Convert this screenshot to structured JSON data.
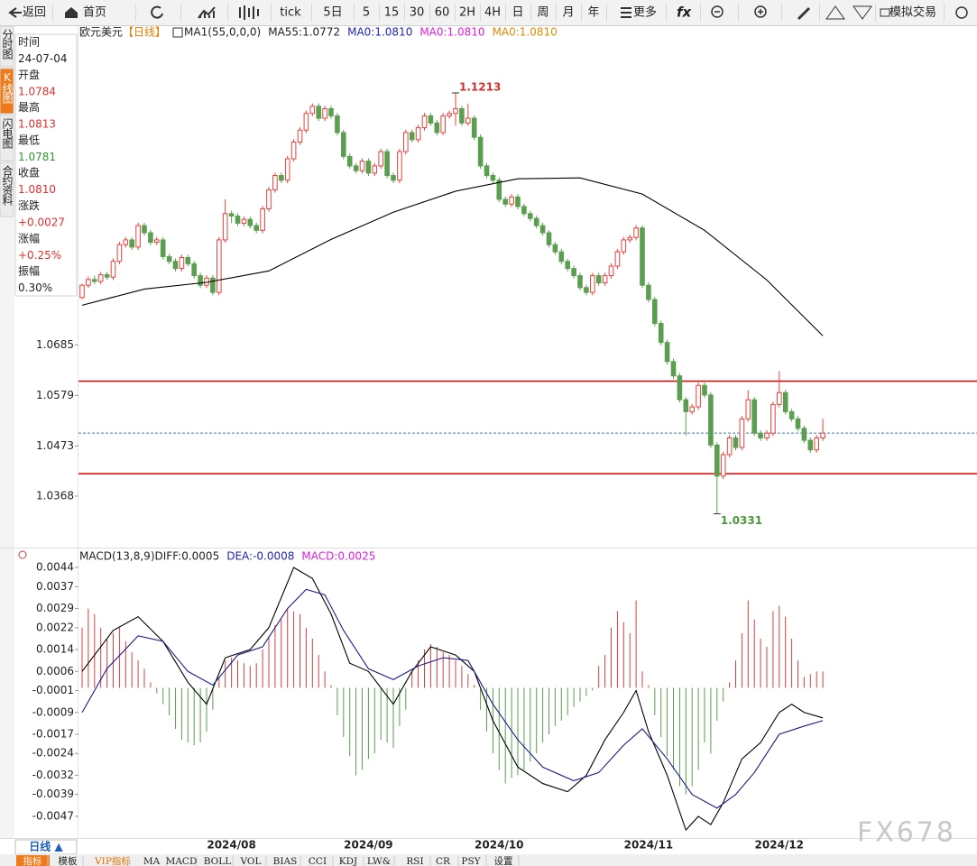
{
  "toolbar": {
    "buttons": [
      "返回",
      "首页",
      "tick",
      "5日",
      "5",
      "15",
      "30",
      "60",
      "2H",
      "4H",
      "日",
      "周",
      "月",
      "年",
      "更多",
      "模拟交易"
    ]
  },
  "side_tabs": [
    "分时图",
    "K线图",
    "闪电图",
    "合约资料"
  ],
  "info_panel": [
    {
      "label": "时间",
      "value": "24-07-04",
      "color": "#222222"
    },
    {
      "label": "开盘",
      "value": "1.0784",
      "color": "#e03030"
    },
    {
      "label": "最高",
      "value": "1.0813",
      "color": "#e03030"
    },
    {
      "label": "最低",
      "value": "1.0781",
      "color": "#2e9a2e"
    },
    {
      "label": "收盘",
      "value": "1.0810",
      "color": "#e03030"
    },
    {
      "label": "涨跌",
      "value": "+0.0027",
      "color": "#e03030"
    },
    {
      "label": "涨幅",
      "value": "+0.25%",
      "color": "#e03030"
    },
    {
      "label": "振幅",
      "value": "0.30%",
      "color": "#222222"
    }
  ],
  "chart_data": [
    {
      "type": "candlestick",
      "legend": [
        {
          "text": "欧元美元",
          "color": "#222222"
        },
        {
          "text": "【日线】",
          "color": "#e87b00"
        },
        {
          "text": "MA1(55,0,0,0)",
          "color": "#222222"
        },
        {
          "text": "MA55:1.0772",
          "color": "#222222"
        },
        {
          "text": "MA0:1.0810",
          "color": "#2424b8"
        },
        {
          "text": "MA0:1.0810",
          "color": "#e020e0"
        },
        {
          "text": "MA0:1.0810",
          "color": "#e08a00"
        }
      ],
      "up_color": "#e8413b",
      "down_color": "#5a9e4f",
      "ylim": [
        1.0264,
        1.1351
      ],
      "yticks": [
        1.0685,
        1.0579,
        1.0473,
        1.0368
      ],
      "candles": [
        [
          1.0784,
          1.0813,
          1.0781,
          1.081
        ],
        [
          1.081,
          1.0828,
          1.0804,
          1.0822
        ],
        [
          1.0822,
          1.083,
          1.0812,
          1.0818
        ],
        [
          1.0818,
          1.0838,
          1.0812,
          1.0832
        ],
        [
          1.0832,
          1.0838,
          1.0821,
          1.0827
        ],
        [
          1.0827,
          1.0866,
          1.0821,
          1.086
        ],
        [
          1.086,
          1.0901,
          1.0854,
          1.0895
        ],
        [
          1.0895,
          1.0911,
          1.0889,
          1.0905
        ],
        [
          1.0905,
          1.0911,
          1.0884,
          1.089
        ],
        [
          1.089,
          1.0941,
          1.0884,
          1.0935
        ],
        [
          1.0935,
          1.0941,
          1.0914,
          1.092
        ],
        [
          1.092,
          1.0926,
          1.0894,
          1.09
        ],
        [
          1.09,
          1.0911,
          1.0894,
          1.0905
        ],
        [
          1.0905,
          1.0911,
          1.0864,
          1.087
        ],
        [
          1.087,
          1.0876,
          1.0854,
          1.086
        ],
        [
          1.086,
          1.0866,
          1.0839,
          1.0845
        ],
        [
          1.0845,
          1.0874,
          1.0839,
          1.0868
        ],
        [
          1.0868,
          1.0874,
          1.0849,
          1.0855
        ],
        [
          1.0855,
          1.0861,
          1.0824,
          1.083
        ],
        [
          1.083,
          1.0836,
          1.0804,
          1.081
        ],
        [
          1.081,
          1.0831,
          1.0804,
          1.0825
        ],
        [
          1.0825,
          1.0831,
          1.0789,
          1.0795
        ],
        [
          1.0795,
          1.0911,
          1.0789,
          1.0905
        ],
        [
          1.0905,
          1.099,
          1.0899,
          1.096
        ],
        [
          1.096,
          1.0966,
          1.094,
          1.0955
        ],
        [
          1.0955,
          1.0961,
          1.0934,
          1.094
        ],
        [
          1.094,
          1.0954,
          1.0934,
          1.0948
        ],
        [
          1.0948,
          1.0954,
          1.0929,
          1.0935
        ],
        [
          1.0935,
          1.0941,
          1.0919,
          1.0925
        ],
        [
          1.0925,
          1.0976,
          1.0919,
          1.097
        ],
        [
          1.097,
          1.1016,
          1.0964,
          1.101
        ],
        [
          1.101,
          1.1046,
          1.1004,
          1.104
        ],
        [
          1.104,
          1.1046,
          1.1024,
          1.103
        ],
        [
          1.103,
          1.1081,
          1.1024,
          1.1075
        ],
        [
          1.1075,
          1.1116,
          1.1069,
          1.111
        ],
        [
          1.111,
          1.1141,
          1.1104,
          1.1135
        ],
        [
          1.1135,
          1.1176,
          1.1129,
          1.117
        ],
        [
          1.117,
          1.1191,
          1.1164,
          1.1185
        ],
        [
          1.1185,
          1.1191,
          1.1154,
          1.116
        ],
        [
          1.116,
          1.1186,
          1.1154,
          1.118
        ],
        [
          1.118,
          1.1186,
          1.1159,
          1.1165
        ],
        [
          1.1165,
          1.1171,
          1.1124,
          1.113
        ],
        [
          1.113,
          1.1136,
          1.1074,
          1.108
        ],
        [
          1.108,
          1.1086,
          1.1054,
          1.106
        ],
        [
          1.106,
          1.1066,
          1.1044,
          1.105
        ],
        [
          1.105,
          1.1076,
          1.1044,
          1.107
        ],
        [
          1.107,
          1.1076,
          1.1039,
          1.1045
        ],
        [
          1.1045,
          1.1066,
          1.1039,
          1.106
        ],
        [
          1.106,
          1.1096,
          1.1054,
          1.109
        ],
        [
          1.109,
          1.1096,
          1.1034,
          1.104
        ],
        [
          1.104,
          1.1046,
          1.1024,
          1.103
        ],
        [
          1.103,
          1.1096,
          1.1024,
          1.109
        ],
        [
          1.109,
          1.1136,
          1.1084,
          1.113
        ],
        [
          1.113,
          1.1136,
          1.1109,
          1.1115
        ],
        [
          1.1115,
          1.1146,
          1.1109,
          1.114
        ],
        [
          1.114,
          1.1171,
          1.1134,
          1.1165
        ],
        [
          1.1165,
          1.1171,
          1.1144,
          1.115
        ],
        [
          1.115,
          1.1156,
          1.1124,
          1.113
        ],
        [
          1.113,
          1.1171,
          1.1124,
          1.1165
        ],
        [
          1.1165,
          1.1176,
          1.1159,
          1.117
        ],
        [
          1.117,
          1.1213,
          1.1144,
          1.118
        ],
        [
          1.118,
          1.1186,
          1.1144,
          1.115
        ],
        [
          1.115,
          1.119,
          1.1144,
          1.116
        ],
        [
          1.116,
          1.1166,
          1.1114,
          1.112
        ],
        [
          1.112,
          1.1126,
          1.1054,
          1.106
        ],
        [
          1.106,
          1.1066,
          1.1034,
          1.104
        ],
        [
          1.104,
          1.1046,
          1.1024,
          1.103
        ],
        [
          1.103,
          1.1036,
          1.0984,
          1.099
        ],
        [
          1.099,
          1.0996,
          1.0974,
          1.098
        ],
        [
          1.098,
          1.1001,
          1.0974,
          1.0995
        ],
        [
          1.0995,
          1.1001,
          1.0969,
          1.0975
        ],
        [
          1.0975,
          1.0981,
          1.0954,
          1.096
        ],
        [
          1.096,
          1.0966,
          1.0944,
          1.095
        ],
        [
          1.095,
          1.0956,
          1.0929,
          1.0935
        ],
        [
          1.0935,
          1.0941,
          1.0914,
          1.092
        ],
        [
          1.092,
          1.0926,
          1.0889,
          1.0895
        ],
        [
          1.0895,
          1.0901,
          1.0874,
          1.088
        ],
        [
          1.088,
          1.0886,
          1.0854,
          1.086
        ],
        [
          1.086,
          1.0866,
          1.0839,
          1.0845
        ],
        [
          1.0845,
          1.0851,
          1.0824,
          1.083
        ],
        [
          1.083,
          1.0836,
          1.0799,
          1.0805
        ],
        [
          1.0805,
          1.0811,
          1.0789,
          1.0795
        ],
        [
          1.0795,
          1.0836,
          1.0789,
          1.083
        ],
        [
          1.083,
          1.0836,
          1.0809,
          1.0815
        ],
        [
          1.0815,
          1.0836,
          1.0809,
          1.083
        ],
        [
          1.083,
          1.0856,
          1.0824,
          1.085
        ],
        [
          1.085,
          1.0886,
          1.0844,
          1.088
        ],
        [
          1.088,
          1.0911,
          1.0874,
          1.0905
        ],
        [
          1.0905,
          1.0916,
          1.0899,
          1.091
        ],
        [
          1.091,
          1.0936,
          1.0904,
          1.093
        ],
        [
          1.093,
          1.0936,
          1.0804,
          1.081
        ],
        [
          1.081,
          1.0816,
          1.0774,
          1.078
        ],
        [
          1.078,
          1.0786,
          1.0724,
          1.073
        ],
        [
          1.073,
          1.0736,
          1.0684,
          1.069
        ],
        [
          1.069,
          1.0696,
          1.0644,
          1.065
        ],
        [
          1.065,
          1.0656,
          1.0614,
          1.062
        ],
        [
          1.062,
          1.0626,
          1.0564,
          1.057
        ],
        [
          1.057,
          1.0576,
          1.0495,
          1.0545
        ],
        [
          1.0545,
          1.0561,
          1.0539,
          1.0555
        ],
        [
          1.0555,
          1.0606,
          1.0549,
          1.06
        ],
        [
          1.06,
          1.0606,
          1.0574,
          1.058
        ],
        [
          1.058,
          1.0586,
          1.0469,
          1.0475
        ],
        [
          1.0475,
          1.0481,
          1.0331,
          1.041
        ],
        [
          1.041,
          1.0461,
          1.0404,
          1.0455
        ],
        [
          1.0455,
          1.0496,
          1.0449,
          1.049
        ],
        [
          1.049,
          1.0496,
          1.0464,
          1.047
        ],
        [
          1.047,
          1.0536,
          1.0464,
          1.053
        ],
        [
          1.053,
          1.059,
          1.0524,
          1.057
        ],
        [
          1.057,
          1.0576,
          1.0494,
          1.05
        ],
        [
          1.05,
          1.0506,
          1.0484,
          1.049
        ],
        [
          1.049,
          1.0506,
          1.0484,
          1.05
        ],
        [
          1.05,
          1.0566,
          1.0494,
          1.056
        ],
        [
          1.056,
          1.063,
          1.0554,
          1.0585
        ],
        [
          1.0585,
          1.0591,
          1.0539,
          1.0545
        ],
        [
          1.0545,
          1.0551,
          1.0524,
          1.053
        ],
        [
          1.053,
          1.0536,
          1.0504,
          1.051
        ],
        [
          1.051,
          1.0516,
          1.0479,
          1.0485
        ],
        [
          1.0485,
          1.0491,
          1.0459,
          1.0465
        ],
        [
          1.0465,
          1.0496,
          1.0459,
          1.049
        ],
        [
          1.049,
          1.053,
          1.0484,
          1.05
        ]
      ],
      "ma55": {
        "color": "#000000",
        "x": [
          0,
          10,
          20,
          30,
          40,
          50,
          60,
          70,
          80,
          90,
          100,
          110,
          119
        ],
        "values": [
          1.0768,
          1.0802,
          1.0816,
          1.084,
          1.0906,
          1.0963,
          1.1007,
          1.1033,
          1.1035,
          1.1001,
          1.0925,
          1.0821,
          1.0704
        ]
      },
      "hlines": [
        {
          "value": 1.0609,
          "color": "#e00000"
        },
        {
          "value": 1.0415,
          "color": "#e00000"
        }
      ],
      "last_price": {
        "value": 1.05,
        "color": "#3a7fc1"
      },
      "annotations": [
        {
          "candle": 60,
          "at": "high",
          "color": "#d03030"
        },
        {
          "candle": 102,
          "at": "low",
          "color": "#4a9a3a"
        }
      ],
      "x_labels": [
        {
          "label": "2024/08",
          "candle": 24
        },
        {
          "label": "2024/09",
          "candle": 46
        },
        {
          "label": "2024/10",
          "candle": 67
        },
        {
          "label": "2024/11",
          "candle": 91
        },
        {
          "label": "2024/12",
          "candle": 112
        }
      ]
    },
    {
      "type": "macd",
      "legend": [
        {
          "text": "MACD(13,8,9)",
          "color": "#222222"
        },
        {
          "text": "DIFF:0.0005",
          "color": "#222222"
        },
        {
          "text": "DEA:-0.0008",
          "color": "#2424b8"
        },
        {
          "text": "MACD:0.0025",
          "color": "#e020e0"
        }
      ],
      "ylim": [
        -0.00546,
        0.00503
      ],
      "yticks": [
        0.0044,
        0.0037,
        0.0029,
        0.0022,
        0.0014,
        0.0006,
        -0.0001,
        -0.0009,
        -0.0017,
        -0.0024,
        -0.0032,
        -0.0039,
        -0.0047
      ],
      "up_color": "#d44040",
      "down_color": "#5a9e4f",
      "histogram": [
        0.0022,
        0.0029,
        0.0027,
        0.0022,
        0.0018,
        0.002,
        0.0022,
        0.0017,
        0.0013,
        0.001,
        0.0007,
        0.0002,
        -0.0002,
        -0.0006,
        -0.001,
        -0.0015,
        -0.0019,
        -0.002,
        -0.0021,
        -0.002,
        -0.0016,
        -0.0008,
        0.0004,
        0.001,
        0.0011,
        0.001,
        0.0009,
        0.0008,
        0.0009,
        0.0014,
        0.0019,
        0.0023,
        0.0025,
        0.0029,
        0.0028,
        0.0027,
        0.0022,
        0.0018,
        0.0012,
        0.0006,
        0.0001,
        -0.001,
        -0.0018,
        -0.0025,
        -0.0032,
        -0.003,
        -0.0026,
        -0.0024,
        -0.0019,
        -0.002,
        -0.0022,
        -0.0014,
        -0.0008,
        0.0006,
        0.001,
        0.0014,
        0.0016,
        0.0015,
        0.0013,
        0.0012,
        0.001,
        0.0008,
        0.0005,
        0.0001,
        -0.0008,
        -0.0016,
        -0.0024,
        -0.003,
        -0.0035,
        -0.0033,
        -0.0032,
        -0.003,
        -0.0027,
        -0.0024,
        -0.002,
        -0.0017,
        -0.0014,
        -0.0012,
        -0.001,
        -0.0007,
        -0.0005,
        -0.0003,
        -0.0001,
        0.0008,
        0.0012,
        0.0022,
        0.0028,
        0.0024,
        0.002,
        0.0032,
        0.0006,
        0.0001,
        -0.001,
        -0.0018,
        -0.0025,
        -0.003,
        -0.0036,
        -0.0039,
        -0.0036,
        -0.003,
        -0.002,
        -0.0024,
        -0.0012,
        -0.0005,
        0.0002,
        0.001,
        0.002,
        0.0032,
        0.0025,
        0.0018,
        0.0015,
        0.0028,
        0.003,
        0.0026,
        0.0018,
        0.001,
        0.0004,
        0.0005,
        0.0006,
        0.0006
      ],
      "diff": {
        "color": "#000000",
        "x": [
          0,
          5,
          9,
          13,
          17,
          20,
          23,
          27,
          30,
          34,
          37,
          40,
          43,
          46,
          50,
          53,
          56,
          60,
          63,
          66,
          70,
          74,
          78,
          81,
          84,
          87,
          89,
          91,
          94,
          97,
          99,
          101,
          103,
          106,
          109,
          112,
          114,
          116,
          119
        ],
        "values": [
          0.0006,
          0.0021,
          0.0026,
          0.0017,
          0.0002,
          -0.0006,
          0.0011,
          0.0014,
          0.0022,
          0.0044,
          0.004,
          0.0027,
          0.0009,
          0.0006,
          -0.0006,
          0.0006,
          0.0015,
          0.0012,
          0.0006,
          -0.0012,
          -0.0029,
          -0.0035,
          -0.0038,
          -0.0032,
          -0.0019,
          -0.0009,
          -0.0001,
          -0.0016,
          -0.0032,
          -0.0052,
          -0.0047,
          -0.005,
          -0.0042,
          -0.0026,
          -0.002,
          -0.0009,
          -0.0006,
          -0.0009,
          -0.0011
        ]
      },
      "dea": {
        "color": "#1a1a8c",
        "x": [
          0,
          4,
          9,
          13,
          17,
          21,
          25,
          29,
          33,
          36,
          39,
          42,
          46,
          50,
          54,
          58,
          62,
          66,
          70,
          74,
          79,
          83,
          87,
          90,
          94,
          98,
          102,
          105,
          108,
          112,
          116,
          119
        ],
        "values": [
          -0.0009,
          0.0007,
          0.0019,
          0.0017,
          0.0006,
          0.0001,
          0.0012,
          0.0015,
          0.0029,
          0.0036,
          0.0034,
          0.0021,
          0.0007,
          0.0003,
          0.0008,
          0.0011,
          0.001,
          -0.0006,
          -0.0019,
          -0.0029,
          -0.0034,
          -0.0031,
          -0.0021,
          -0.0015,
          -0.0026,
          -0.0039,
          -0.0044,
          -0.0039,
          -0.0031,
          -0.0017,
          -0.0014,
          -0.0012
        ]
      }
    }
  ],
  "period_button": "日线 ▲",
  "bottom_tabs": [
    "指标",
    "模板",
    "VIP指标",
    "MA",
    "MACD",
    "BOLL",
    "VOL",
    "BIAS",
    "CCI",
    "KDJ",
    "LW&",
    "RSI",
    "CR",
    "PSY",
    "设置"
  ],
  "watermark": "FX678"
}
